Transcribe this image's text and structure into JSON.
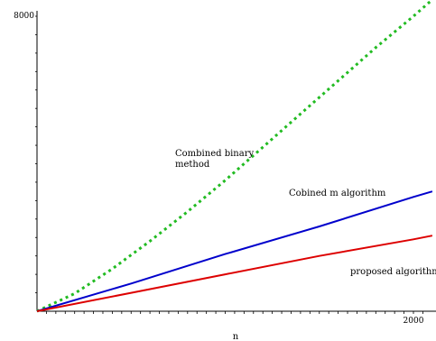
{
  "chart_data": {
    "type": "line",
    "title": "",
    "xlabel": "n",
    "ylabel": "",
    "xlim": [
      0,
      2100
    ],
    "ylim": [
      0,
      8000
    ],
    "grid": false,
    "x_ticks_labeled": [
      {
        "value": 2000,
        "label": "2000"
      }
    ],
    "y_ticks_labeled": [
      {
        "value": 8000,
        "label": "8000"
      }
    ],
    "series": [
      {
        "color": "#22bb22",
        "style": "dotted",
        "x": [
          0,
          200,
          400,
          600,
          800,
          1000,
          1200,
          1400,
          1600,
          1800,
          2000,
          2100
        ],
        "y": [
          0,
          480,
          1150,
          1900,
          2700,
          3550,
          4450,
          5350,
          6250,
          7150,
          8000,
          8450
        ]
      },
      {
        "color": "#0000cc",
        "style": "solid",
        "x": [
          0,
          500,
          1000,
          1500,
          2000,
          2100
        ],
        "y": [
          0,
          750,
          1550,
          2300,
          3100,
          3250
        ]
      },
      {
        "color": "#dd0000",
        "style": "solid",
        "x": [
          0,
          500,
          1000,
          1500,
          2000,
          2100
        ],
        "y": [
          0,
          500,
          1000,
          1500,
          1950,
          2050
        ]
      }
    ],
    "annotations": [
      {
        "lines": [
          "Combined binary",
          "method"
        ],
        "x": 730,
        "y": 4050
      },
      {
        "lines": [
          "Cobined  m algorithm"
        ],
        "x": 1320,
        "y": 3150
      },
      {
        "lines": [
          "proposed algorithm"
        ],
        "x": 1650,
        "y": 1050
      }
    ]
  }
}
